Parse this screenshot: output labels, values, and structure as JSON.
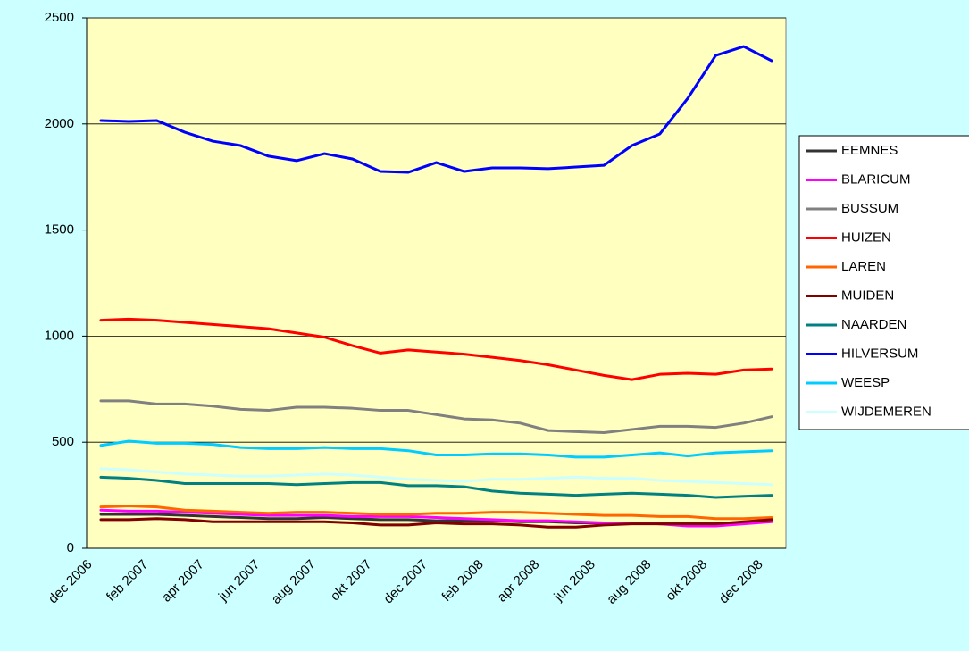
{
  "chart_data": {
    "type": "line",
    "categories": [
      "dec 2006",
      null,
      "feb 2007",
      null,
      "apr 2007",
      null,
      "jun 2007",
      null,
      "aug 2007",
      null,
      "okt 2007",
      null,
      "dec 2007",
      null,
      "feb 2008",
      null,
      "apr 2008",
      null,
      "jun 2008",
      null,
      "aug 2008",
      null,
      "okt 2008",
      null,
      "dec 2008"
    ],
    "ylim": [
      0,
      2500
    ],
    "yticks": [
      0,
      500,
      1000,
      1500,
      2000,
      2500
    ],
    "grid": true,
    "legend": "right",
    "series": [
      {
        "name": "EEMNES",
        "color": "#333333",
        "values": [
          160,
          160,
          160,
          155,
          150,
          145,
          140,
          140,
          145,
          140,
          135,
          135,
          130,
          130,
          130,
          125,
          125,
          120,
          120,
          120,
          115,
          115,
          115,
          120,
          130
        ]
      },
      {
        "name": "BLARICUM",
        "color": "#ff00ff",
        "values": [
          180,
          175,
          175,
          170,
          165,
          160,
          155,
          155,
          155,
          150,
          150,
          150,
          145,
          140,
          135,
          130,
          130,
          125,
          120,
          120,
          115,
          105,
          105,
          115,
          125
        ]
      },
      {
        "name": "BUSSUM",
        "color": "#808080",
        "values": [
          695,
          695,
          680,
          680,
          670,
          655,
          650,
          665,
          665,
          660,
          650,
          650,
          630,
          610,
          605,
          590,
          555,
          550,
          545,
          560,
          575,
          575,
          570,
          590,
          620
        ]
      },
      {
        "name": "HUIZEN",
        "color": "#ff0000",
        "values": [
          1075,
          1080,
          1075,
          1065,
          1055,
          1045,
          1035,
          1015,
          995,
          955,
          920,
          935,
          925,
          915,
          900,
          885,
          865,
          840,
          815,
          795,
          820,
          825,
          820,
          840,
          845
        ]
      },
      {
        "name": "LAREN",
        "color": "#ff6600",
        "values": [
          195,
          200,
          195,
          180,
          175,
          170,
          165,
          170,
          170,
          165,
          160,
          160,
          165,
          165,
          170,
          170,
          165,
          160,
          155,
          155,
          150,
          150,
          140,
          140,
          145
        ]
      },
      {
        "name": "MUIDEN",
        "color": "#800000",
        "values": [
          135,
          135,
          140,
          135,
          125,
          125,
          125,
          125,
          125,
          120,
          110,
          110,
          120,
          115,
          115,
          110,
          100,
          100,
          110,
          115,
          115,
          115,
          115,
          125,
          135
        ]
      },
      {
        "name": "NAARDEN",
        "color": "#008080",
        "values": [
          335,
          330,
          320,
          305,
          305,
          305,
          305,
          300,
          305,
          310,
          310,
          295,
          295,
          290,
          270,
          260,
          255,
          250,
          255,
          260,
          255,
          250,
          240,
          245,
          250
        ]
      },
      {
        "name": "HILVERSUM",
        "color": "#0000ff",
        "values": [
          2016,
          2012,
          2016,
          1961,
          1919,
          1898,
          1848,
          1827,
          1860,
          1835,
          1776,
          1772,
          1818,
          1776,
          1793,
          1793,
          1789,
          1797,
          1805,
          1898,
          1953,
          2121,
          2323,
          2365,
          2298
        ]
      },
      {
        "name": "WEESP",
        "color": "#00ccff",
        "values": [
          485,
          505,
          495,
          495,
          490,
          475,
          470,
          470,
          475,
          470,
          470,
          460,
          440,
          440,
          445,
          445,
          440,
          430,
          430,
          440,
          450,
          435,
          450,
          455,
          460
        ]
      },
      {
        "name": "WIJDEMEREN",
        "color": "#ccffff",
        "values": [
          375,
          370,
          360,
          350,
          345,
          340,
          340,
          345,
          350,
          345,
          335,
          325,
          320,
          315,
          325,
          325,
          330,
          335,
          330,
          330,
          320,
          315,
          310,
          305,
          300
        ]
      }
    ]
  }
}
